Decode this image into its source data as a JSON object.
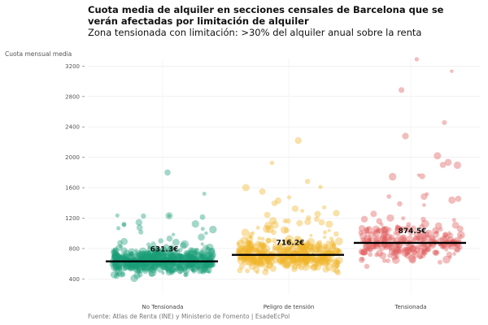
{
  "chart_data": {
    "type": "scatter",
    "title": "Cuota media de alquiler en secciones censales de Barcelona que se verán afectadas por limitación de alquiler",
    "subtitle": "Zona tensionada con limitación: >30% del alquiler anual sobre la renta",
    "ylabel": "Cuota mensual media",
    "source": "Fuente: Atlas de Renta (INE) y Ministerio de Fomento | EsadeEcPol",
    "ylim": [
      200,
      3300
    ],
    "yticks": [
      400,
      800,
      1200,
      1600,
      2000,
      2400,
      2800,
      3200
    ],
    "grid": true,
    "categories": [
      "No Tensionada",
      "Peligro de tensión",
      "Tensionada"
    ],
    "series": [
      {
        "name": "No Tensionada",
        "color": "#1a9e77",
        "mean": 631.3,
        "mean_label": "631.3€",
        "n_points": 600,
        "range": [
          380,
          1800
        ]
      },
      {
        "name": "Peligro de tensión",
        "color": "#f0b429",
        "mean": 716.2,
        "mean_label": "716.2€",
        "n_points": 450,
        "range": [
          430,
          2220
        ]
      },
      {
        "name": "Tensionada",
        "color": "#e05a5a",
        "mean": 874.5,
        "mean_label": "874.5€",
        "n_points": 260,
        "range": [
          500,
          3290
        ]
      }
    ]
  }
}
